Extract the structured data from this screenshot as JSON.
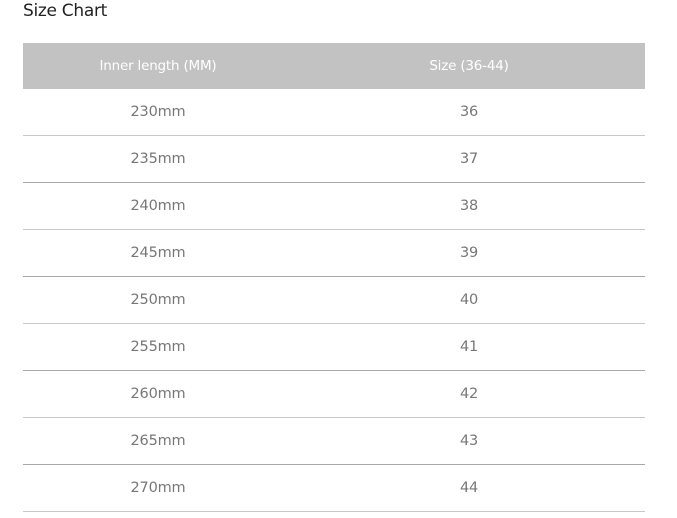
{
  "title": "Size Chart",
  "headers": [
    "Inner length (MM)",
    "Size (36-44)"
  ],
  "rows": [
    [
      "230mm",
      "36"
    ],
    [
      "235mm",
      "37"
    ],
    [
      "240mm",
      "38"
    ],
    [
      "245mm",
      "39"
    ],
    [
      "250mm",
      "40"
    ],
    [
      "255mm",
      "41"
    ],
    [
      "260mm",
      "42"
    ],
    [
      "265mm",
      "43"
    ],
    [
      "270mm",
      "44"
    ]
  ],
  "colors": {
    "header_bg": "#c2c2c2",
    "header_text": "#ffffff",
    "cell_text": "#777777"
  }
}
